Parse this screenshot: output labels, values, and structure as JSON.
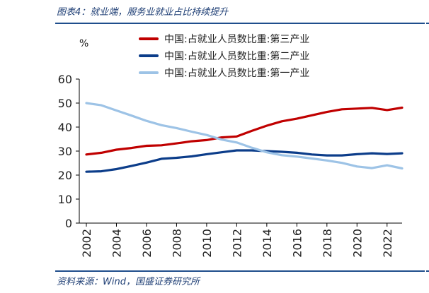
{
  "figure": {
    "title": "图表4：就业端，服务业就业占比持续提升",
    "source": "资料来源：Wind，国盛证券研究所"
  },
  "chart_data": {
    "type": "line",
    "unit_label": "%",
    "ylim": [
      0,
      60
    ],
    "yticks": [
      0,
      10,
      20,
      30,
      40,
      50,
      60
    ],
    "xlim": [
      2002,
      2023
    ],
    "xticks": [
      "2002",
      "2004",
      "2006",
      "2008",
      "2010",
      "2012",
      "2014",
      "2016",
      "2018",
      "2020",
      "2022"
    ],
    "grid": false,
    "legend_position": "top",
    "x": [
      2002,
      2003,
      2004,
      2005,
      2006,
      2007,
      2008,
      2009,
      2010,
      2011,
      2012,
      2013,
      2014,
      2015,
      2016,
      2017,
      2018,
      2019,
      2020,
      2021,
      2022,
      2023
    ],
    "series": [
      {
        "name": "中国:占就业人员数比重:第三产业",
        "color": "#c00000",
        "values": [
          28.6,
          29.3,
          30.6,
          31.3,
          32.2,
          32.4,
          33.2,
          34.1,
          34.6,
          35.7,
          36.1,
          38.4,
          40.6,
          42.4,
          43.5,
          44.9,
          46.3,
          47.4,
          47.7,
          48.0,
          47.1,
          48.1
        ]
      },
      {
        "name": "中国:占就业人员数比重:第二产业",
        "color": "#0c3d8a",
        "values": [
          21.4,
          21.6,
          22.5,
          23.8,
          25.2,
          26.8,
          27.2,
          27.8,
          28.7,
          29.5,
          30.3,
          30.3,
          30.0,
          29.7,
          29.3,
          28.6,
          28.2,
          28.2,
          28.7,
          29.1,
          28.8,
          29.1
        ]
      },
      {
        "name": "中国:占就业人员数比重:第一产业",
        "color": "#9dc3e6",
        "values": [
          50.0,
          49.1,
          46.9,
          44.8,
          42.6,
          40.8,
          39.6,
          38.1,
          36.7,
          34.8,
          33.6,
          31.4,
          29.5,
          28.3,
          27.7,
          26.9,
          26.1,
          25.1,
          23.6,
          22.9,
          24.1,
          22.8
        ]
      }
    ]
  }
}
